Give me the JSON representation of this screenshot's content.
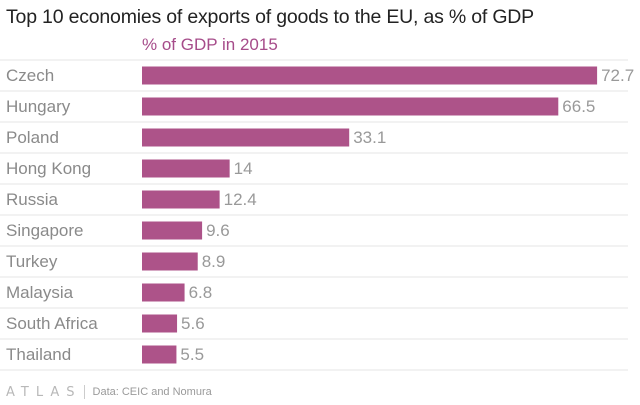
{
  "chart_data": {
    "type": "bar",
    "orientation": "horizontal",
    "title": "Top 10 economies of exports of goods to the EU, as % of GDP",
    "series": [
      {
        "name": "% of GDP in 2015",
        "values": [
          72.7,
          66.5,
          33.1,
          14,
          12.4,
          9.6,
          8.9,
          6.8,
          5.6,
          5.5
        ],
        "value_labels": [
          "72.7",
          "66.5",
          "33.1",
          "14",
          "12.4",
          "9.6",
          "8.9",
          "6.8",
          "5.6",
          "5.5"
        ],
        "color": "#ad5389"
      }
    ],
    "categories": [
      "Czech",
      "Hungary",
      "Poland",
      "Hong Kong",
      "Russia",
      "Singapore",
      "Turkey",
      "Malaysia",
      "South Africa",
      "Thailand"
    ],
    "xlim": [
      0,
      75
    ],
    "grid": true,
    "legend": "top-left"
  },
  "footer": {
    "brand": "ATLAS",
    "source": "Data: CEIC and Nomura"
  },
  "colors": {
    "bar": "#ad5389",
    "legend_text": "#a64c8a",
    "category_text": "#8a8a8a",
    "value_text": "#999999",
    "gridline": "#e6e6e6"
  }
}
